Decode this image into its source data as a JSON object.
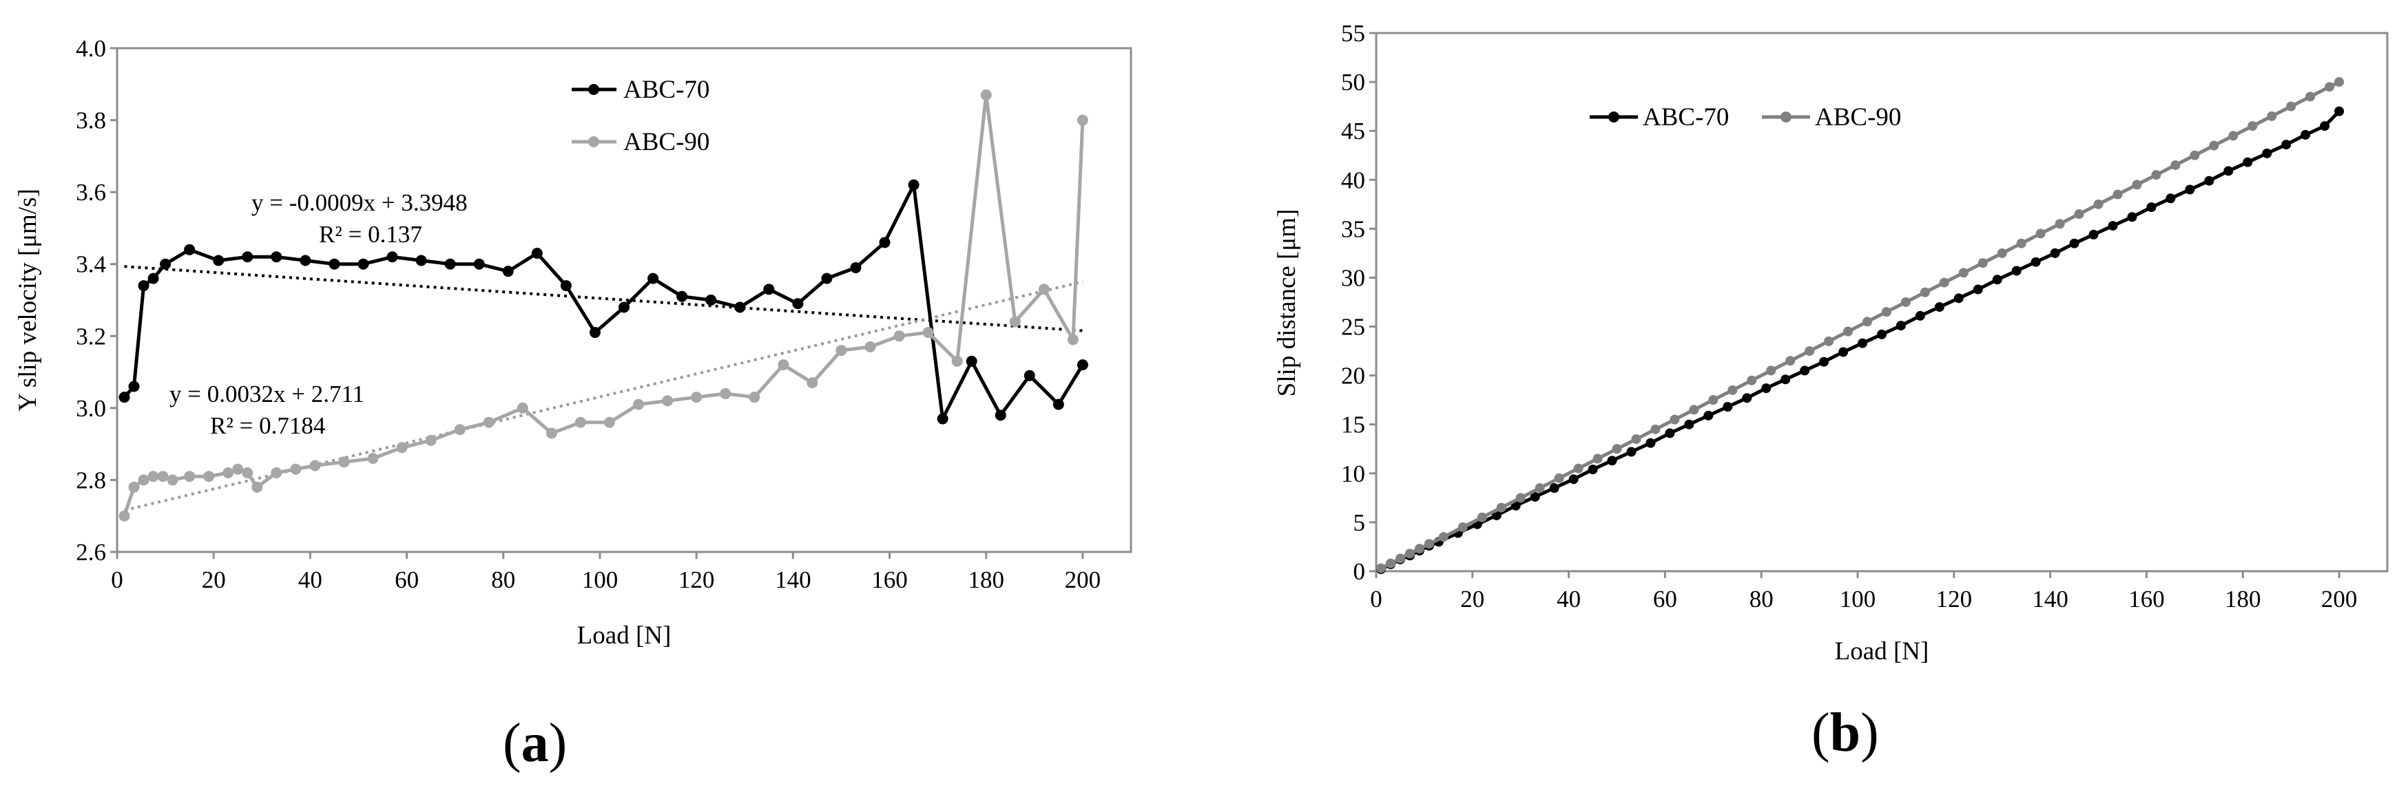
{
  "figure": {
    "panel_a_label": "a",
    "panel_b_label": "b"
  },
  "chart_data": [
    {
      "type": "line",
      "panel": "a",
      "title": "",
      "xlabel": "Load [N]",
      "ylabel": "Y slip velocity  [μm/s]",
      "xlim": [
        0,
        210
      ],
      "ylim": [
        2.6,
        4.0
      ],
      "xticks": [
        0,
        20,
        40,
        60,
        80,
        100,
        120,
        140,
        160,
        180,
        200
      ],
      "yticks": [
        2.6,
        2.8,
        3.0,
        3.2,
        3.4,
        3.6,
        3.8,
        4.0
      ],
      "xtick_labels": [
        "0",
        "20",
        "40",
        "60",
        "80",
        "100",
        "120",
        "140",
        "160",
        "180",
        "200"
      ],
      "ytick_labels": [
        "2.6",
        "2.8",
        "3.0",
        "3.2",
        "3.4",
        "3.6",
        "3.8",
        "4.0"
      ],
      "legend_position": "top-center",
      "series": [
        {
          "name": "ABC-70",
          "color": "#000000",
          "x": [
            1.5,
            3.5,
            5.5,
            7.5,
            10,
            15,
            21,
            27,
            33,
            39,
            45,
            51,
            57,
            63,
            69,
            75,
            81,
            87,
            93,
            99,
            105,
            111,
            117,
            123,
            129,
            135,
            141,
            147,
            153,
            159,
            165,
            171,
            177,
            183,
            189,
            195,
            200
          ],
          "values": [
            3.03,
            3.06,
            3.34,
            3.36,
            3.4,
            3.44,
            3.41,
            3.42,
            3.42,
            3.41,
            3.4,
            3.4,
            3.42,
            3.41,
            3.4,
            3.4,
            3.38,
            3.43,
            3.34,
            3.21,
            3.28,
            3.36,
            3.31,
            3.3,
            3.28,
            3.33,
            3.29,
            3.36,
            3.39,
            3.46,
            3.62,
            2.97,
            3.13,
            2.98,
            3.09,
            3.01,
            3.12
          ]
        },
        {
          "name": "ABC-90",
          "color": "#a6a6a6",
          "x": [
            1.5,
            3.5,
            5.5,
            7.5,
            9.5,
            11.5,
            15,
            19,
            23,
            25,
            27,
            29,
            33,
            37,
            41,
            47,
            53,
            59,
            65,
            71,
            77,
            84,
            90,
            96,
            102,
            108,
            114,
            120,
            126,
            132,
            138,
            144,
            150,
            156,
            162,
            168,
            174,
            180,
            186,
            192,
            198,
            200
          ],
          "values": [
            2.7,
            2.78,
            2.8,
            2.81,
            2.81,
            2.8,
            2.81,
            2.81,
            2.82,
            2.83,
            2.82,
            2.78,
            2.82,
            2.83,
            2.84,
            2.85,
            2.86,
            2.89,
            2.91,
            2.94,
            2.96,
            3.0,
            2.93,
            2.96,
            2.96,
            3.01,
            3.02,
            3.03,
            3.04,
            3.03,
            3.12,
            3.07,
            3.16,
            3.17,
            3.2,
            3.21,
            3.13,
            3.87,
            3.24,
            3.33,
            3.19,
            3.8
          ]
        }
      ],
      "trendlines": [
        {
          "series": "ABC-70",
          "slope": -0.0009,
          "intercept": 3.3948,
          "equation": "y = -0.0009x + 3.3948",
          "r2": "R² = 0.137"
        },
        {
          "series": "ABC-90",
          "slope": 0.0032,
          "intercept": 2.711,
          "equation": "y = 0.0032x + 2.711",
          "r2": "R² = 0.7184"
        }
      ]
    },
    {
      "type": "line",
      "panel": "b",
      "title": "",
      "xlabel": "Load [N]",
      "ylabel": "Slip distance [μm]",
      "xlim": [
        0,
        210
      ],
      "ylim": [
        0,
        55
      ],
      "xticks": [
        0,
        20,
        40,
        60,
        80,
        100,
        120,
        140,
        160,
        180,
        200
      ],
      "yticks": [
        0,
        5,
        10,
        15,
        20,
        25,
        30,
        35,
        40,
        45,
        50,
        55
      ],
      "xtick_labels": [
        "0",
        "20",
        "40",
        "60",
        "80",
        "100",
        "120",
        "140",
        "160",
        "180",
        "200"
      ],
      "ytick_labels": [
        "0",
        "5",
        "10",
        "15",
        "20",
        "25",
        "30",
        "35",
        "40",
        "45",
        "50",
        "55"
      ],
      "legend_position": "top-left",
      "series": [
        {
          "name": "ABC-70",
          "color": "#000000",
          "x": [
            1,
            3,
            5,
            7,
            9,
            11,
            13,
            17,
            21,
            25,
            29,
            33,
            37,
            41,
            45,
            49,
            53,
            57,
            61,
            65,
            69,
            73,
            77,
            81,
            85,
            89,
            93,
            97,
            101,
            105,
            109,
            113,
            117,
            121,
            125,
            129,
            133,
            137,
            141,
            145,
            149,
            153,
            157,
            161,
            165,
            169,
            173,
            177,
            181,
            185,
            189,
            193,
            197,
            200
          ],
          "values": [
            0.2,
            0.7,
            1.2,
            1.6,
            2.1,
            2.6,
            3.0,
            3.9,
            4.8,
            5.7,
            6.7,
            7.6,
            8.5,
            9.4,
            10.4,
            11.3,
            12.2,
            13.1,
            14.1,
            15.0,
            15.9,
            16.8,
            17.7,
            18.7,
            19.6,
            20.5,
            21.4,
            22.4,
            23.3,
            24.2,
            25.1,
            26.1,
            27.0,
            27.9,
            28.8,
            29.8,
            30.7,
            31.6,
            32.5,
            33.5,
            34.4,
            35.3,
            36.2,
            37.2,
            38.1,
            39.0,
            39.9,
            40.9,
            41.8,
            42.7,
            43.6,
            44.6,
            45.5,
            47.0
          ]
        },
        {
          "name": "ABC-90",
          "color": "#808080",
          "x": [
            1,
            3,
            5,
            7,
            9,
            11,
            14,
            18,
            22,
            26,
            30,
            34,
            38,
            42,
            46,
            50,
            54,
            58,
            62,
            66,
            70,
            74,
            78,
            82,
            86,
            90,
            94,
            98,
            102,
            106,
            110,
            114,
            118,
            122,
            126,
            130,
            134,
            138,
            142,
            146,
            150,
            154,
            158,
            162,
            166,
            170,
            174,
            178,
            182,
            186,
            190,
            194,
            198,
            200
          ],
          "values": [
            0.3,
            0.8,
            1.3,
            1.8,
            2.3,
            2.8,
            3.5,
            4.5,
            5.5,
            6.5,
            7.5,
            8.5,
            9.5,
            10.5,
            11.5,
            12.5,
            13.5,
            14.5,
            15.5,
            16.5,
            17.5,
            18.5,
            19.5,
            20.5,
            21.5,
            22.5,
            23.5,
            24.5,
            25.5,
            26.5,
            27.5,
            28.5,
            29.5,
            30.5,
            31.5,
            32.5,
            33.5,
            34.5,
            35.5,
            36.5,
            37.5,
            38.5,
            39.5,
            40.5,
            41.5,
            42.5,
            43.5,
            44.5,
            45.5,
            46.5,
            47.5,
            48.5,
            49.5,
            50.0
          ]
        }
      ]
    }
  ]
}
